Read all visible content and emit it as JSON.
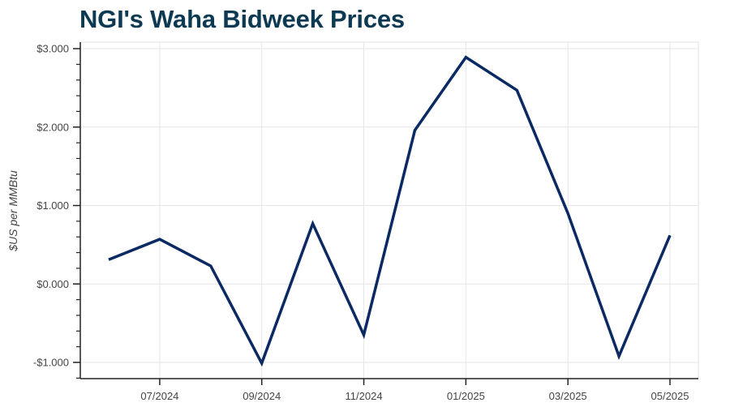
{
  "title": "NGI's Waha Bidweek Prices",
  "colors": {
    "title": "#0d3a52",
    "line": "#0b2a63",
    "grid": "#e6e6e6",
    "axis": "#222222",
    "tick_text": "#444444"
  },
  "chart_data": {
    "type": "line",
    "title": "NGI's Waha Bidweek Prices",
    "xlabel": "",
    "ylabel": "$US per MMBtu",
    "x": [
      "06/2024",
      "07/2024",
      "08/2024",
      "09/2024",
      "10/2024",
      "11/2024",
      "12/2024",
      "01/2025",
      "02/2025",
      "03/2025",
      "04/2025",
      "05/2025"
    ],
    "series": [
      {
        "name": "Waha Bidweek Price",
        "values": [
          0.31,
          0.57,
          0.23,
          -1.01,
          0.77,
          -0.65,
          1.96,
          2.89,
          2.47,
          0.9,
          -0.92,
          0.62
        ]
      }
    ],
    "x_tick_labels": [
      "07/2024",
      "09/2024",
      "11/2024",
      "01/2025",
      "03/2025",
      "05/2025"
    ],
    "y_tick_labels": [
      "$3.000",
      "$2.000",
      "$1.000",
      "$0.000",
      "-$1.000"
    ],
    "y_ticks": [
      3,
      2,
      1,
      0,
      -1
    ],
    "ylim": [
      -1.21,
      3.08
    ],
    "grid": true,
    "legend": "none"
  }
}
